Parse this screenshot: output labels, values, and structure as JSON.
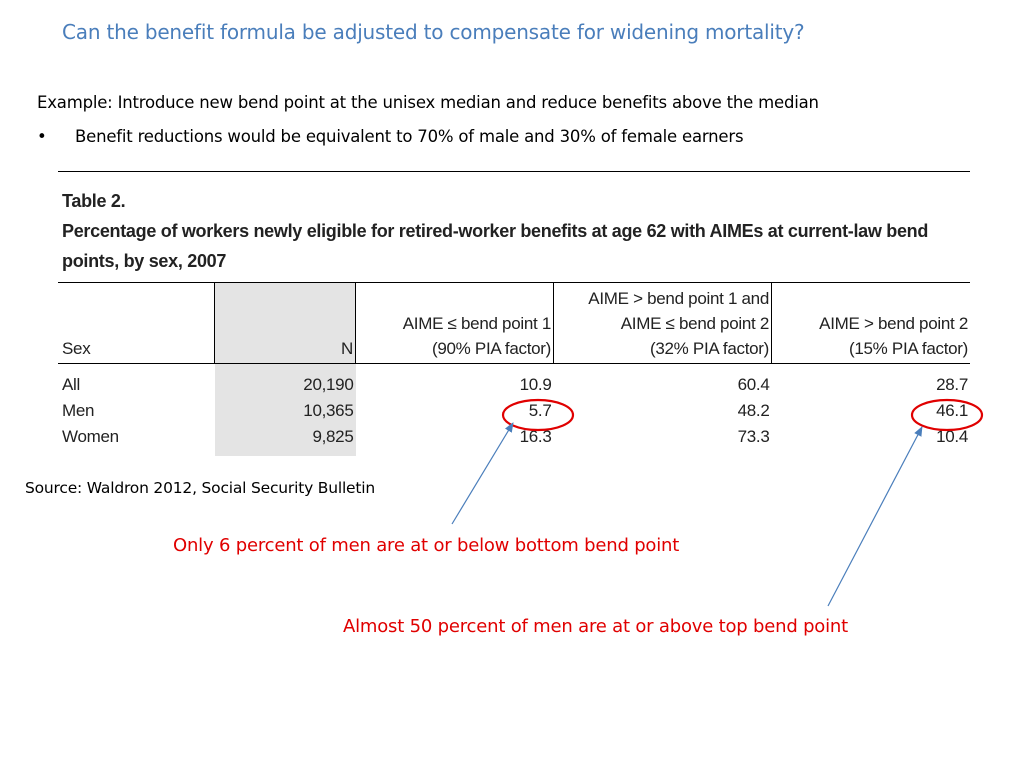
{
  "slide": {
    "title": "Can the benefit formula be adjusted to compensate for widening mortality?",
    "example": "Example: Introduce new bend point at the unisex median and reduce benefits above the median",
    "bullet_glyph": "•",
    "bullet": "Benefit reductions would be equivalent to 70% of male and 30% of female earners",
    "source": "Source: Waldron 2012, Social Security Bulletin",
    "callout_bottom": "Only 6 percent of men are at or below bottom bend point",
    "callout_top": "Almost 50 percent of men are at or above top bend point",
    "annotation_color": "#e00000",
    "arrow_color": "#4a7ebb",
    "title_color": "#4a7ebb"
  },
  "table": {
    "label": "Table 2.",
    "caption_line1": "Percentage of workers newly eligible for retired-worker benefits at age 62 with AIMEs at current-law bend",
    "caption_line2": "points, by sex, 2007",
    "headers": {
      "sex": "Sex",
      "n": "N",
      "col1_line1": "AIME ≤ bend point 1",
      "col1_line2": "(90% PIA factor)",
      "col2_line1": "AIME > bend point 1 and",
      "col2_line2": "AIME ≤ bend point 2",
      "col2_line3": "(32% PIA factor)",
      "col3_line1": "AIME > bend point 2",
      "col3_line2": "(15% PIA factor)"
    },
    "rows": [
      {
        "sex": "All",
        "n": "20,190",
        "c1": "10.9",
        "c2": "60.4",
        "c3": "28.7"
      },
      {
        "sex": "Men",
        "n": "10,365",
        "c1": "5.7",
        "c2": "48.2",
        "c3": "46.1"
      },
      {
        "sex": "Women",
        "n": "9,825",
        "c1": "16.3",
        "c2": "73.3",
        "c3": "10.4"
      }
    ],
    "highlighted_cells": [
      "Men / AIME ≤ bend point 1",
      "Men / AIME > bend point 2"
    ],
    "shaded_column_color": "#e4e4e4"
  }
}
